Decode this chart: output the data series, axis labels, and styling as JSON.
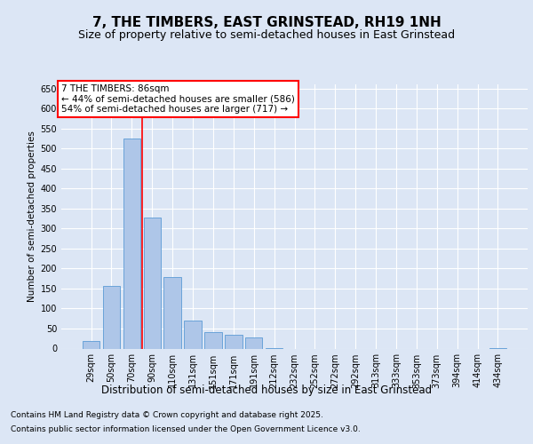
{
  "title": "7, THE TIMBERS, EAST GRINSTEAD, RH19 1NH",
  "subtitle": "Size of property relative to semi-detached houses in East Grinstead",
  "xlabel": "Distribution of semi-detached houses by size in East Grinstead",
  "ylabel": "Number of semi-detached properties",
  "categories": [
    "29sqm",
    "50sqm",
    "70sqm",
    "90sqm",
    "110sqm",
    "131sqm",
    "151sqm",
    "171sqm",
    "191sqm",
    "212sqm",
    "232sqm",
    "252sqm",
    "272sqm",
    "292sqm",
    "313sqm",
    "333sqm",
    "353sqm",
    "373sqm",
    "394sqm",
    "414sqm",
    "434sqm"
  ],
  "values": [
    18,
    157,
    524,
    328,
    178,
    70,
    40,
    35,
    27,
    2,
    0,
    0,
    0,
    0,
    0,
    0,
    0,
    0,
    0,
    0,
    2
  ],
  "bar_color": "#aec6e8",
  "bar_edge_color": "#5b9bd5",
  "vline_index": 2,
  "vline_color": "red",
  "annotation_title": "7 THE TIMBERS: 86sqm",
  "annotation_line1": "← 44% of semi-detached houses are smaller (586)",
  "annotation_line2": "54% of semi-detached houses are larger (717) →",
  "ylim": [
    0,
    660
  ],
  "yticks": [
    0,
    50,
    100,
    150,
    200,
    250,
    300,
    350,
    400,
    450,
    500,
    550,
    600,
    650
  ],
  "background_color": "#dce6f5",
  "plot_background": "#dce6f5",
  "grid_color": "white",
  "footer_line1": "Contains HM Land Registry data © Crown copyright and database right 2025.",
  "footer_line2": "Contains public sector information licensed under the Open Government Licence v3.0.",
  "title_fontsize": 11,
  "subtitle_fontsize": 9,
  "xlabel_fontsize": 8.5,
  "ylabel_fontsize": 7.5,
  "tick_fontsize": 7,
  "footer_fontsize": 6.5,
  "annotation_fontsize": 7.5
}
